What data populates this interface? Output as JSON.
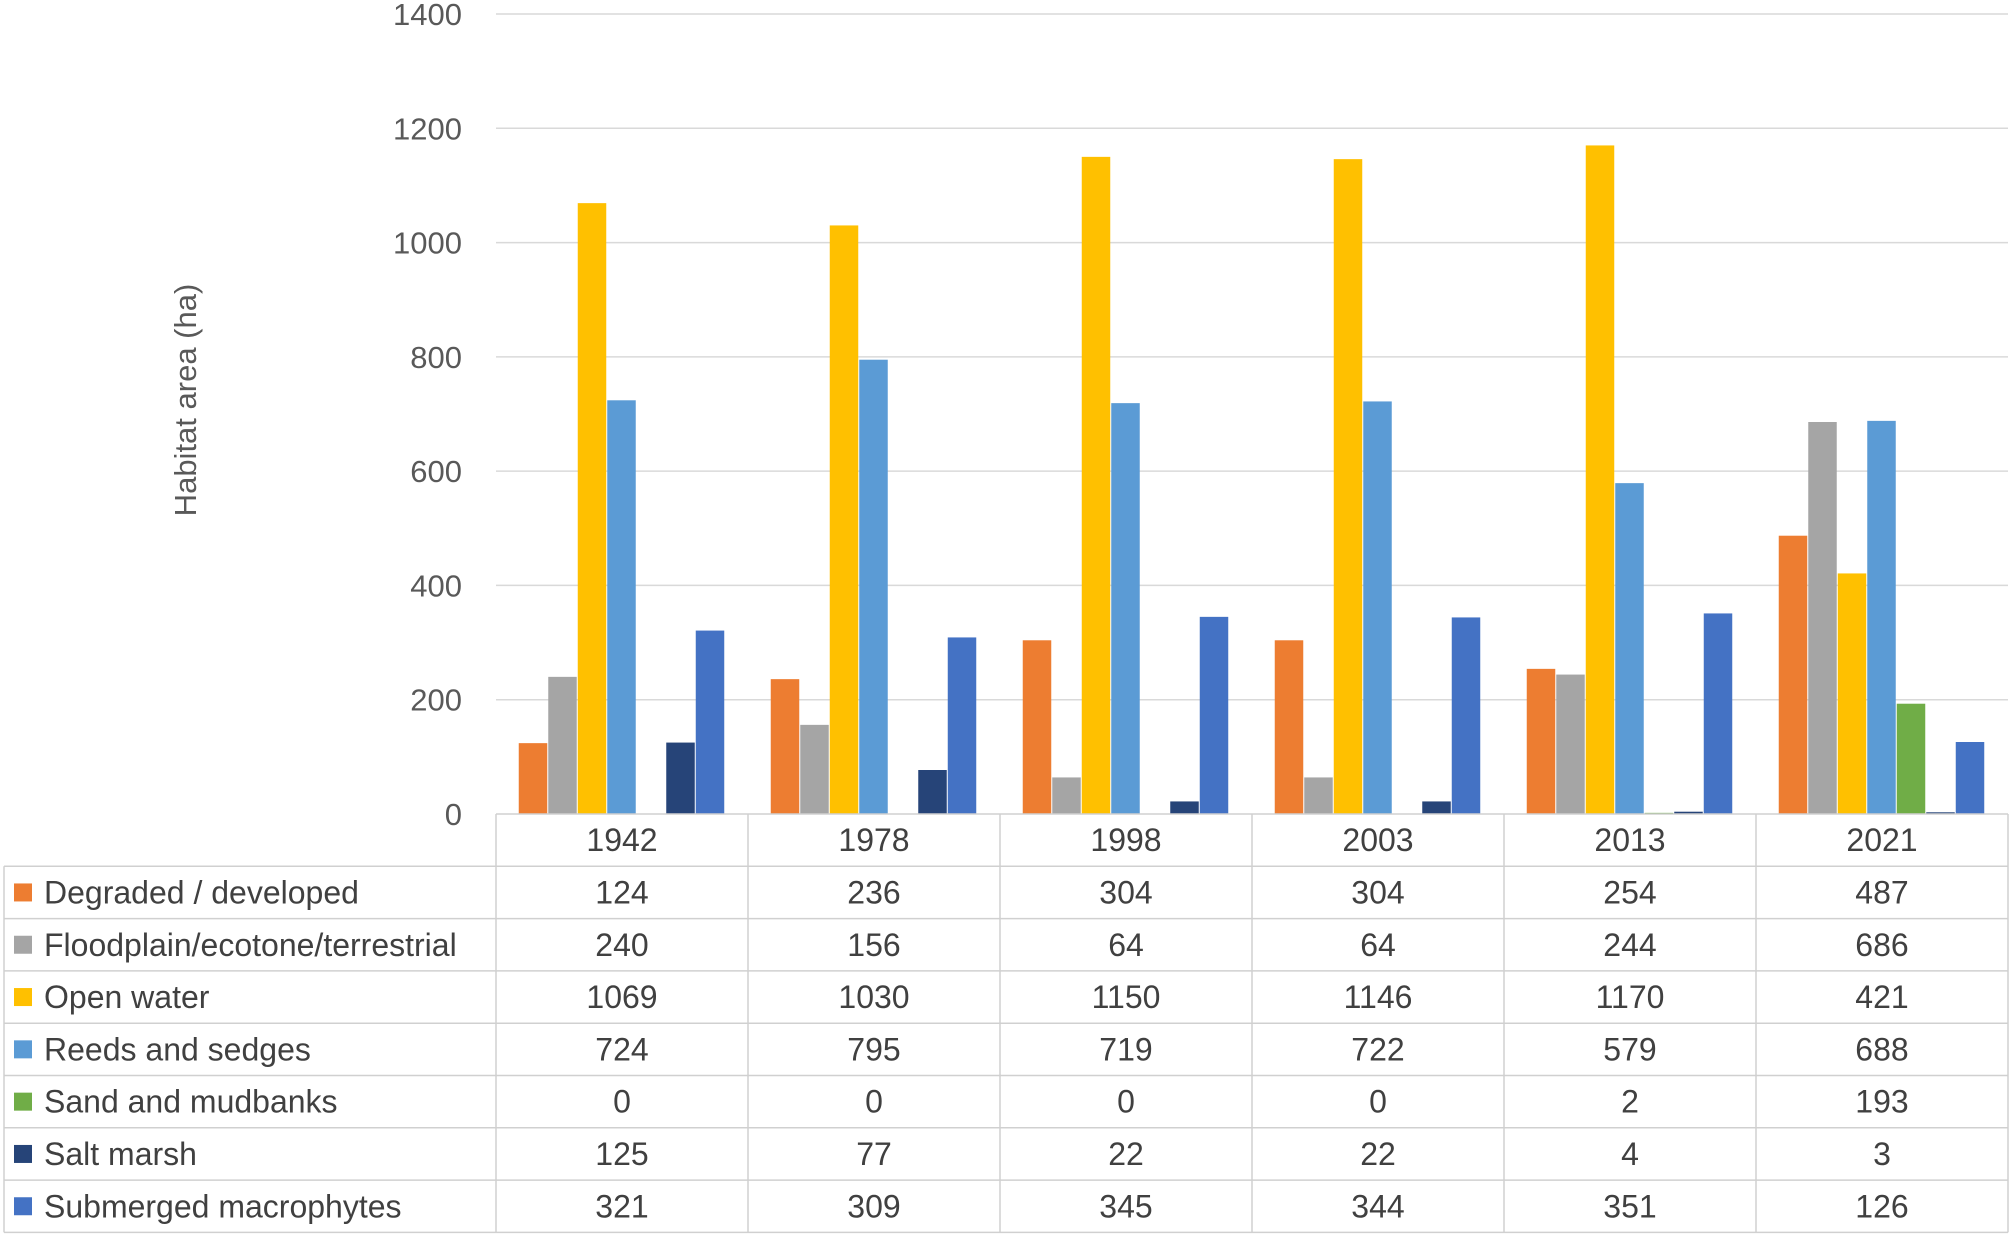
{
  "chart_data": {
    "type": "bar",
    "title": "",
    "xlabel": "",
    "ylabel": "Habitat area (ha)",
    "ylim": [
      0,
      1400
    ],
    "yticks": [
      0,
      200,
      400,
      600,
      800,
      1000,
      1200,
      1400
    ],
    "grid": true,
    "legend": "data-table",
    "categories": [
      "1942",
      "1978",
      "1998",
      "2003",
      "2013",
      "2021"
    ],
    "series": [
      {
        "name": "Degraded / developed",
        "color": "#ED7D31",
        "values": [
          124,
          236,
          304,
          304,
          254,
          487
        ]
      },
      {
        "name": "Floodplain/ecotone/terrestrial",
        "color": "#A5A5A5",
        "values": [
          240,
          156,
          64,
          64,
          244,
          686
        ]
      },
      {
        "name": "Open water",
        "color": "#FFC000",
        "values": [
          1069,
          1030,
          1150,
          1146,
          1170,
          421
        ]
      },
      {
        "name": "Reeds and sedges",
        "color": "#5B9BD5",
        "values": [
          724,
          795,
          719,
          722,
          579,
          688
        ]
      },
      {
        "name": "Sand and mudbanks",
        "color": "#70AD47",
        "values": [
          0,
          0,
          0,
          0,
          2,
          193
        ]
      },
      {
        "name": "Salt marsh",
        "color": "#264478",
        "values": [
          125,
          77,
          22,
          22,
          4,
          3
        ]
      },
      {
        "name": "Submerged macrophytes",
        "color": "#4472C4",
        "values": [
          321,
          309,
          345,
          344,
          351,
          126
        ]
      }
    ]
  }
}
